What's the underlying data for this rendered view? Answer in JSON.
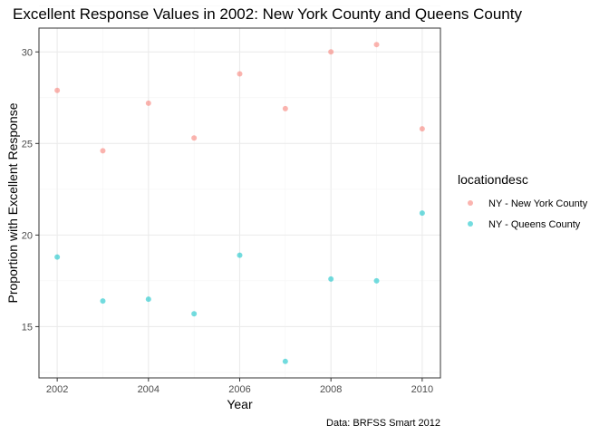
{
  "chart_data": {
    "type": "scatter",
    "title": "Excellent Response Values in 2002: New York County and Queens County",
    "xlabel": "Year",
    "ylabel": "Proportion with Excellent Response",
    "caption": "Data: BRFSS Smart 2012",
    "xlim": [
      2001.6,
      2010.4
    ],
    "ylim": [
      12.2,
      31.3
    ],
    "x_ticks": [
      2002,
      2004,
      2006,
      2008,
      2010
    ],
    "y_ticks": [
      15,
      20,
      25,
      30
    ],
    "grid": true,
    "legend": {
      "title": "locationdesc",
      "placement": "right"
    },
    "series": [
      {
        "name": "NY - New York County",
        "color": "#F8766D",
        "points": [
          {
            "x": 2002,
            "y": 27.9
          },
          {
            "x": 2003,
            "y": 24.6
          },
          {
            "x": 2004,
            "y": 27.2
          },
          {
            "x": 2005,
            "y": 25.3
          },
          {
            "x": 2006,
            "y": 28.8
          },
          {
            "x": 2007,
            "y": 26.9
          },
          {
            "x": 2008,
            "y": 30.0
          },
          {
            "x": 2009,
            "y": 30.4
          },
          {
            "x": 2010,
            "y": 25.8
          }
        ]
      },
      {
        "name": "NY - Queens County",
        "color": "#00BFC4",
        "points": [
          {
            "x": 2002,
            "y": 18.8
          },
          {
            "x": 2003,
            "y": 16.4
          },
          {
            "x": 2004,
            "y": 16.5
          },
          {
            "x": 2005,
            "y": 15.7
          },
          {
            "x": 2006,
            "y": 18.9
          },
          {
            "x": 2007,
            "y": 13.1
          },
          {
            "x": 2008,
            "y": 17.6
          },
          {
            "x": 2009,
            "y": 17.5
          },
          {
            "x": 2010,
            "y": 21.2
          }
        ]
      }
    ]
  }
}
